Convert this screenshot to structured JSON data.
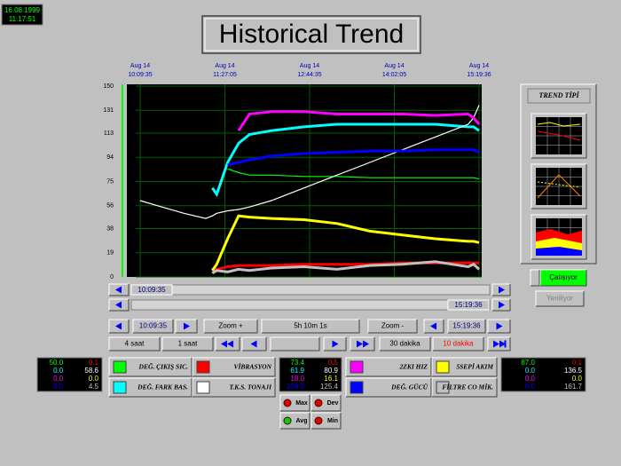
{
  "clock": {
    "date": "16.08.1999",
    "time": "11:17:51"
  },
  "title": "Historical Trend",
  "chart_data": {
    "type": "line",
    "xlim": [
      0,
      310
    ],
    "xticks": [
      {
        "value": 0,
        "label": "Aug 14\n10:09:35"
      },
      {
        "value": 77.5,
        "label": "Aug 14\n11:27:05"
      },
      {
        "value": 155,
        "label": "Aug 14\n12:44:35"
      },
      {
        "value": 232.5,
        "label": "Aug 14\n14:02:05"
      },
      {
        "value": 310,
        "label": "Aug 14\n15:19:36"
      }
    ],
    "ylim": [
      0,
      150
    ],
    "yticks": [
      0,
      19,
      38,
      56,
      75,
      94,
      113,
      131,
      150
    ],
    "grid": true,
    "x": [
      0,
      20,
      40,
      60,
      66,
      70,
      80,
      90,
      100,
      120,
      150,
      180,
      210,
      240,
      270,
      300,
      305,
      310
    ],
    "series": [
      {
        "name": "DEĞ. ÇIKIŞ SIC.",
        "color": "#00ff00",
        "values": [
          null,
          null,
          null,
          null,
          null,
          null,
          85,
          82,
          80,
          80,
          79,
          79,
          78,
          78,
          78,
          78,
          78,
          77
        ]
      },
      {
        "name": "VİBRASYON",
        "color": "#ff0000",
        "values": [
          null,
          null,
          null,
          null,
          5,
          6,
          8,
          9,
          9,
          9,
          10,
          10,
          10,
          11,
          11,
          11,
          11,
          11
        ]
      },
      {
        "name": "DEĞ. FARK BAS.",
        "color": "#00ffff",
        "values": [
          null,
          null,
          null,
          null,
          70,
          65,
          90,
          105,
          112,
          115,
          118,
          120,
          120,
          120,
          120,
          118,
          118,
          115
        ]
      },
      {
        "name": "T.K.S. TONAJI",
        "color": "#ffffff",
        "values": [
          60,
          55,
          50,
          46,
          48,
          50,
          52,
          53,
          55,
          60,
          70,
          80,
          90,
          100,
          110,
          120,
          125,
          135
        ]
      },
      {
        "name": "2ZKI HIZ",
        "color": "#ff00ff",
        "values": [
          null,
          null,
          null,
          null,
          null,
          null,
          null,
          115,
          128,
          130,
          130,
          128,
          128,
          128,
          127,
          128,
          125,
          120
        ]
      },
      {
        "name": "5SEPİ AKIM",
        "color": "#ffff00",
        "values": [
          null,
          null,
          null,
          null,
          5,
          10,
          30,
          48,
          47,
          46,
          45,
          42,
          36,
          33,
          30,
          28,
          28,
          27
        ]
      },
      {
        "name": "DEĞ. GÜCÜ",
        "color": "#0000ff",
        "values": [
          null,
          null,
          null,
          null,
          null,
          null,
          88,
          90,
          92,
          95,
          97,
          98,
          99,
          99,
          100,
          100,
          100,
          98
        ]
      },
      {
        "name": "FİLTRE CO MİK.",
        "color": "#c0c0c0",
        "values": [
          null,
          null,
          null,
          null,
          3,
          5,
          4,
          6,
          5,
          7,
          8,
          6,
          9,
          10,
          12,
          8,
          10,
          6
        ]
      }
    ]
  },
  "controls": {
    "scroll_start": "10:09:35",
    "scroll_end": "15:19:36",
    "start": "10:09:35",
    "zoom_in": "Zoom +",
    "span": "5h 10m 1s",
    "zoom_out": "Zoom -",
    "end": "15:19:36",
    "h4": "4 saat",
    "h1": "1 saat",
    "m30": "30 dakika",
    "m10": "10 dakika"
  },
  "readouts": [
    [
      [
        "50.0",
        "0.1"
      ],
      [
        "0.0",
        "58.6"
      ],
      [
        "0.0",
        "0.0"
      ],
      [
        "0.0",
        "4.5"
      ]
    ],
    [
      [
        "73.4",
        "0.5"
      ],
      [
        "61.9",
        "80.9"
      ],
      [
        "18.0",
        "16.1"
      ],
      [
        "108.0",
        "125.4"
      ]
    ],
    [
      [
        "87.0",
        "0.1"
      ],
      [
        "0.0",
        "136.5"
      ],
      [
        "0.0",
        "0.0"
      ],
      [
        "0.0",
        "161.7"
      ]
    ]
  ],
  "trend_type": "TREND TİPİ",
  "status": {
    "running": "Çalışıyor",
    "refresh": "Yeniliyor"
  },
  "stats": [
    "Max",
    "Dev",
    "Avg",
    "Min"
  ]
}
